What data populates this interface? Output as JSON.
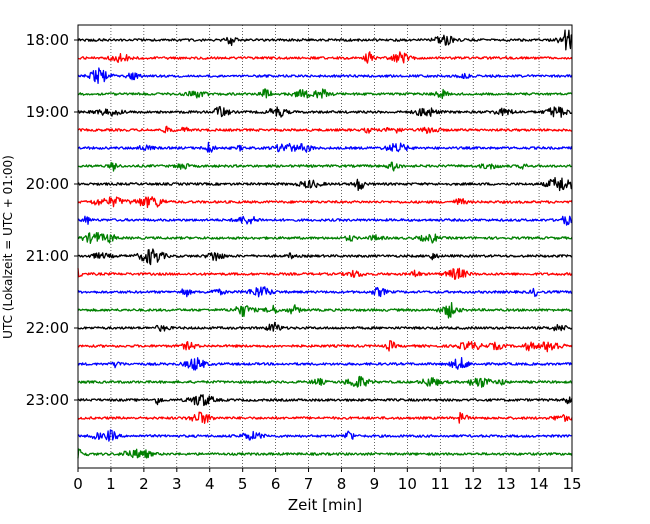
{
  "chart_data": {
    "type": "line",
    "title": "",
    "xlabel": "Zeit  [min]",
    "ylabel": "UTC (Lokalzeit = UTC + 01:00)",
    "xlim": [
      0,
      15
    ],
    "x_ticks": [
      0,
      1,
      2,
      3,
      4,
      5,
      6,
      7,
      8,
      9,
      10,
      11,
      12,
      13,
      14,
      15
    ],
    "x_tick_labels": [
      "0",
      "1",
      "2",
      "3",
      "4",
      "5",
      "6",
      "7",
      "8",
      "9",
      "10",
      "11",
      "12",
      "13",
      "14",
      "15"
    ],
    "y_tick_labels": [
      "18:00",
      "19:00",
      "20:00",
      "21:00",
      "22:00",
      "23:00"
    ],
    "grid": {
      "x": true,
      "x_style": "dotted",
      "y": false
    },
    "legend": "none",
    "trace_colors_cycle": [
      "#000000",
      "#ff0000",
      "#0000ff",
      "#008000"
    ],
    "series": [
      {
        "start_time": "18:00"
      },
      {
        "start_time": "18:15"
      },
      {
        "start_time": "18:30"
      },
      {
        "start_time": "18:45"
      },
      {
        "start_time": "19:00"
      },
      {
        "start_time": "19:15"
      },
      {
        "start_time": "19:30"
      },
      {
        "start_time": "19:45"
      },
      {
        "start_time": "20:00"
      },
      {
        "start_time": "20:15"
      },
      {
        "start_time": "20:30"
      },
      {
        "start_time": "20:45"
      },
      {
        "start_time": "21:00"
      },
      {
        "start_time": "21:15"
      },
      {
        "start_time": "21:30"
      },
      {
        "start_time": "21:45"
      },
      {
        "start_time": "22:00"
      },
      {
        "start_time": "22:15"
      },
      {
        "start_time": "22:30"
      },
      {
        "start_time": "22:45"
      },
      {
        "start_time": "23:00"
      },
      {
        "start_time": "23:15"
      },
      {
        "start_time": "23:30"
      },
      {
        "start_time": "23:45"
      }
    ]
  }
}
